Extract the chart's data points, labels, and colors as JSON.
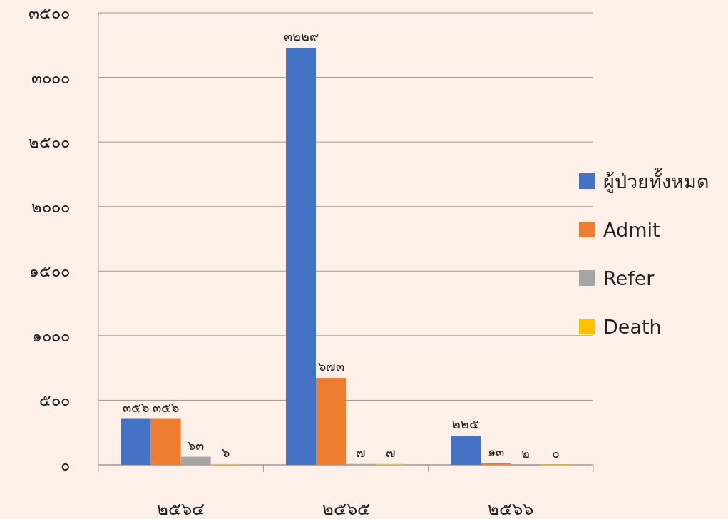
{
  "chart_data": {
    "type": "bar",
    "categories": [
      "๒๕๖๔",
      "๒๕๖๕",
      "๒๕๖๖"
    ],
    "series": [
      {
        "name": "ผู้ป่วยทั้งหมด",
        "color": "#4472c4",
        "values": [
          356,
          3229,
          225
        ],
        "value_labels": [
          "๓๕๖",
          "๓๒๒๙",
          "๒๒๕"
        ]
      },
      {
        "name": "Admit",
        "color": "#ed7d31",
        "values": [
          356,
          673,
          13
        ],
        "value_labels": [
          "๓๕๖",
          "๖๗๓",
          "๑๓"
        ]
      },
      {
        "name": "Refer",
        "color": "#a5a5a5",
        "values": [
          63,
          7,
          2
        ],
        "value_labels": [
          "๖๓",
          "๗",
          "๒"
        ]
      },
      {
        "name": "Death",
        "color": "#ffc000",
        "values": [
          6,
          7,
          0
        ],
        "value_labels": [
          "๖",
          "๗",
          "๐"
        ]
      }
    ],
    "ylim": [
      0,
      3500
    ],
    "yticks": [
      {
        "value": 0,
        "label": "๐"
      },
      {
        "value": 500,
        "label": "๕๐๐"
      },
      {
        "value": 1000,
        "label": "๑๐๐๐"
      },
      {
        "value": 1500,
        "label": "๑๕๐๐"
      },
      {
        "value": 2000,
        "label": "๒๐๐๐"
      },
      {
        "value": 2500,
        "label": "๒๕๐๐"
      },
      {
        "value": 3000,
        "label": "๓๐๐๐"
      },
      {
        "value": 3500,
        "label": "๓๕๐๐"
      }
    ],
    "grid": "y",
    "legend": "right"
  }
}
